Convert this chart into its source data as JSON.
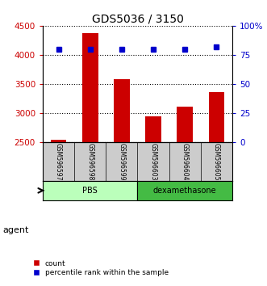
{
  "title": "GDS5036 / 3150",
  "samples": [
    "GSM596597",
    "GSM596598",
    "GSM596599",
    "GSM596603",
    "GSM596604",
    "GSM596605"
  ],
  "counts": [
    2535,
    4370,
    3580,
    2940,
    3110,
    3360
  ],
  "percentile_ranks": [
    80,
    80,
    80,
    80,
    80,
    82
  ],
  "bar_color": "#cc0000",
  "marker_color": "#0000cc",
  "left_yaxis_color": "#cc0000",
  "right_yaxis_color": "#0000cc",
  "ylim_left": [
    2500,
    4500
  ],
  "ylim_right": [
    0,
    100
  ],
  "yticks_left": [
    2500,
    3000,
    3500,
    4000,
    4500
  ],
  "yticks_right": [
    0,
    25,
    50,
    75,
    100
  ],
  "yticklabels_right": [
    "0",
    "25",
    "50",
    "75",
    "100%"
  ],
  "pbs_color": "#bbffbb",
  "dex_color": "#44bb44",
  "pbs_label": "PBS",
  "dex_label": "dexamethasone",
  "agent_label": "agent",
  "legend_count": "count",
  "legend_percentile": "percentile rank within the sample",
  "n_pbs": 3,
  "n_dex": 3
}
